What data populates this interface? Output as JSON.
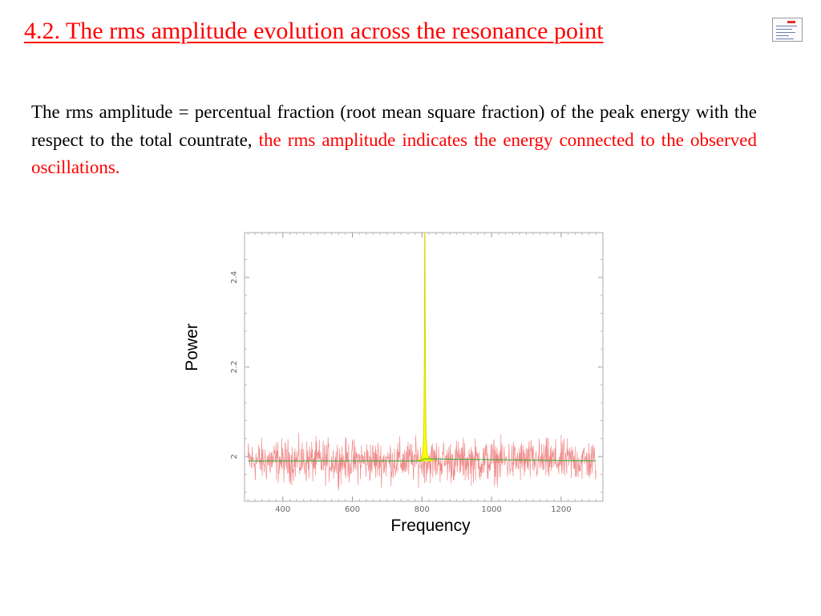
{
  "slide": {
    "title": "4.2. The rms amplitude evolution across the resonance point",
    "paragraph_black": "The rms amplitude = percentual fraction (root mean square fraction) of the peak energy with the respect to the total countrate,",
    "paragraph_red": "the rms amplitude indicates the energy connected to the observed oscillations."
  },
  "colors": {
    "title": "#ff0000",
    "highlight": "#ff0000",
    "noise": "#f08080",
    "fit_line": "#33aa33",
    "peak_fill": "#ffff00"
  },
  "chart_data": {
    "type": "line",
    "xlabel": "Frequency",
    "ylabel": "Power",
    "xlim": [
      290,
      1320
    ],
    "ylim": [
      1.9,
      2.5
    ],
    "xticks": [
      400,
      600,
      800,
      1000,
      1200
    ],
    "yticks": [
      2,
      2.2,
      2.4
    ],
    "grid": false,
    "series": [
      {
        "style": "noisy red power spectrum",
        "x_range": [
          300,
          1300
        ],
        "level": 1.99,
        "spread": 0.07
      },
      {
        "style": "green model baseline",
        "x": [
          300,
          795,
          805,
          1300
        ],
        "y": [
          1.99,
          1.99,
          1.995,
          1.99
        ]
      },
      {
        "style": "yellow Lorentzian QPO peak",
        "center": 808,
        "peak_y": 2.5,
        "baseline_y": 1.99,
        "half_width": 1.2
      }
    ]
  }
}
